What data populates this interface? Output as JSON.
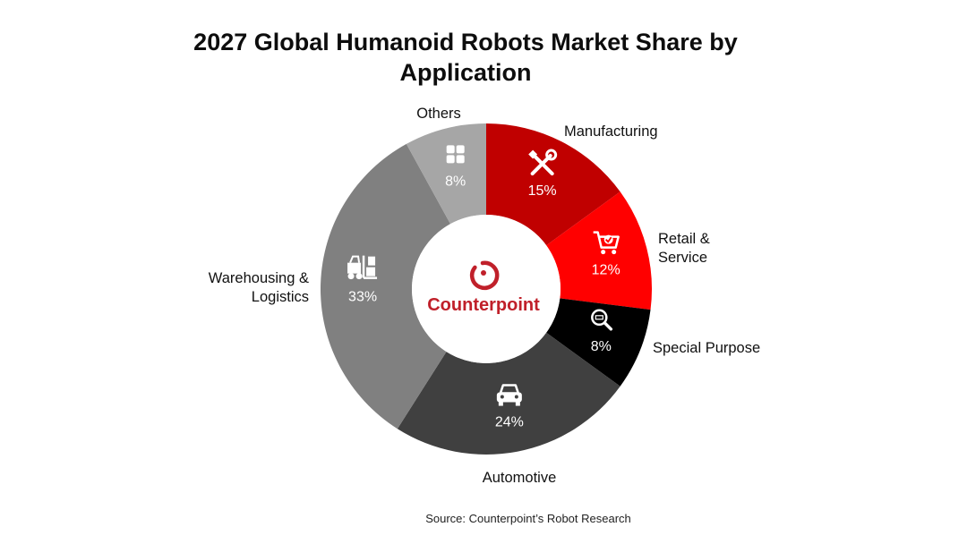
{
  "title_lines": [
    "2027 Global Humanoid Robots Market Share by",
    "Application"
  ],
  "source": "Source: Counterpoint’s Robot Research",
  "logo_text": "Counterpoint",
  "colors": {
    "brand_red": "#c0202a"
  },
  "chart_data": {
    "type": "pie",
    "variant": "donut",
    "title": "2027 Global Humanoid Robots Market Share by Application",
    "unit": "%",
    "slices": [
      {
        "label": "Manufacturing",
        "label_lines": [
          "Manufacturing"
        ],
        "value": 15,
        "pct_text": "15%",
        "color": "#c00000",
        "icon": "tools-icon"
      },
      {
        "label": "Retail & Service",
        "label_lines": [
          "Retail &",
          "Service"
        ],
        "value": 12,
        "pct_text": "12%",
        "color": "#ff0000",
        "icon": "shopping-cart-icon"
      },
      {
        "label": "Special Purpose",
        "label_lines": [
          "Special Purpose"
        ],
        "value": 8,
        "pct_text": "8%",
        "color": "#000000",
        "icon": "magnifier-icon"
      },
      {
        "label": "Automotive",
        "label_lines": [
          "Automotive"
        ],
        "value": 24,
        "pct_text": "24%",
        "color": "#404040",
        "icon": "car-icon"
      },
      {
        "label": "Warehousing & Logistics",
        "label_lines": [
          "Warehousing &",
          "Logistics"
        ],
        "value": 33,
        "pct_text": "33%",
        "color": "#808080",
        "icon": "forklift-icon"
      },
      {
        "label": "Others",
        "label_lines": [
          "Others"
        ],
        "value": 8,
        "pct_text": "8%",
        "color": "#a6a6a6",
        "icon": "grid-icon"
      }
    ],
    "start_angle_deg": 0,
    "direction": "clockwise",
    "legend": "none"
  }
}
